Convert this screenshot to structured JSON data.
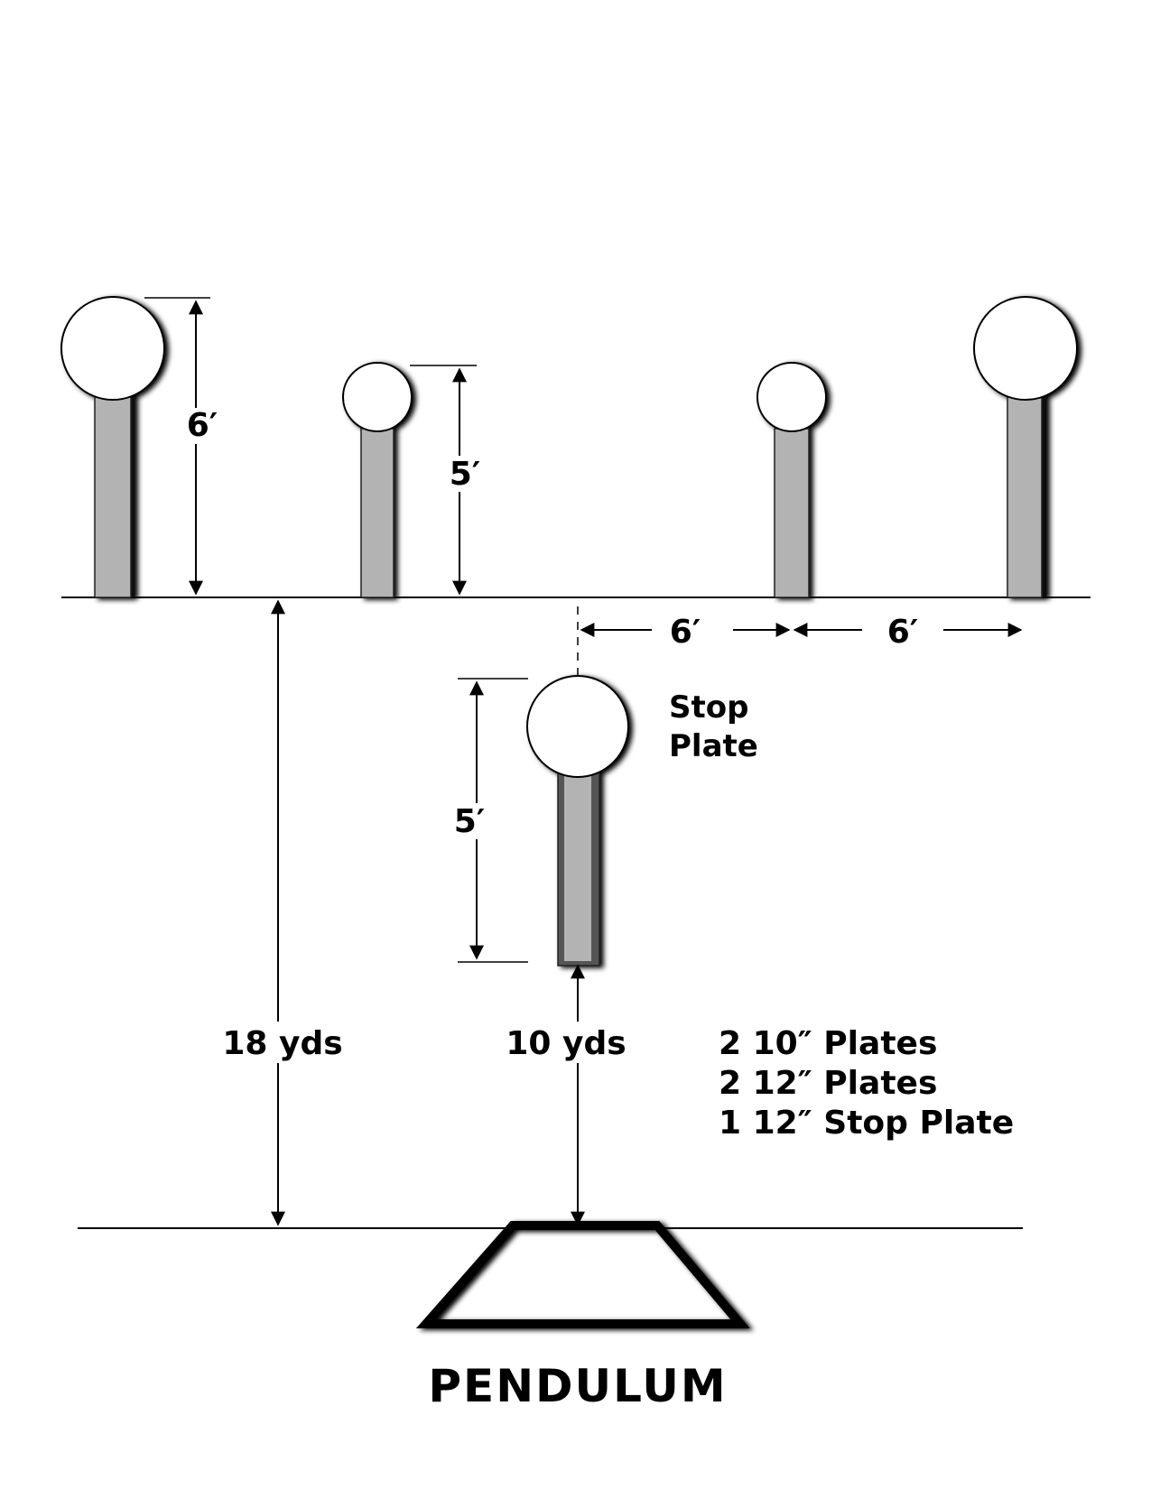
{
  "dimensions": {
    "left_plate_height": "6′",
    "inner_plate_height": "5′",
    "spacing_center_to_plate": "6′",
    "spacing_plate_to_plate": "6′",
    "stop_plate_height": "5′",
    "distance_to_row": "18 yds",
    "distance_to_stop_plate": "10 yds"
  },
  "stop_plate_label": [
    "Stop",
    "Plate"
  ],
  "legend": [
    "2 10″ Plates",
    "2 12″ Plates",
    "1 12″ Stop Plate"
  ],
  "title": "PENDULUM",
  "colors": {
    "post": "#b3b3b3",
    "post_shadow": "#111111",
    "plate": "#ffffff",
    "line": "#000000"
  }
}
